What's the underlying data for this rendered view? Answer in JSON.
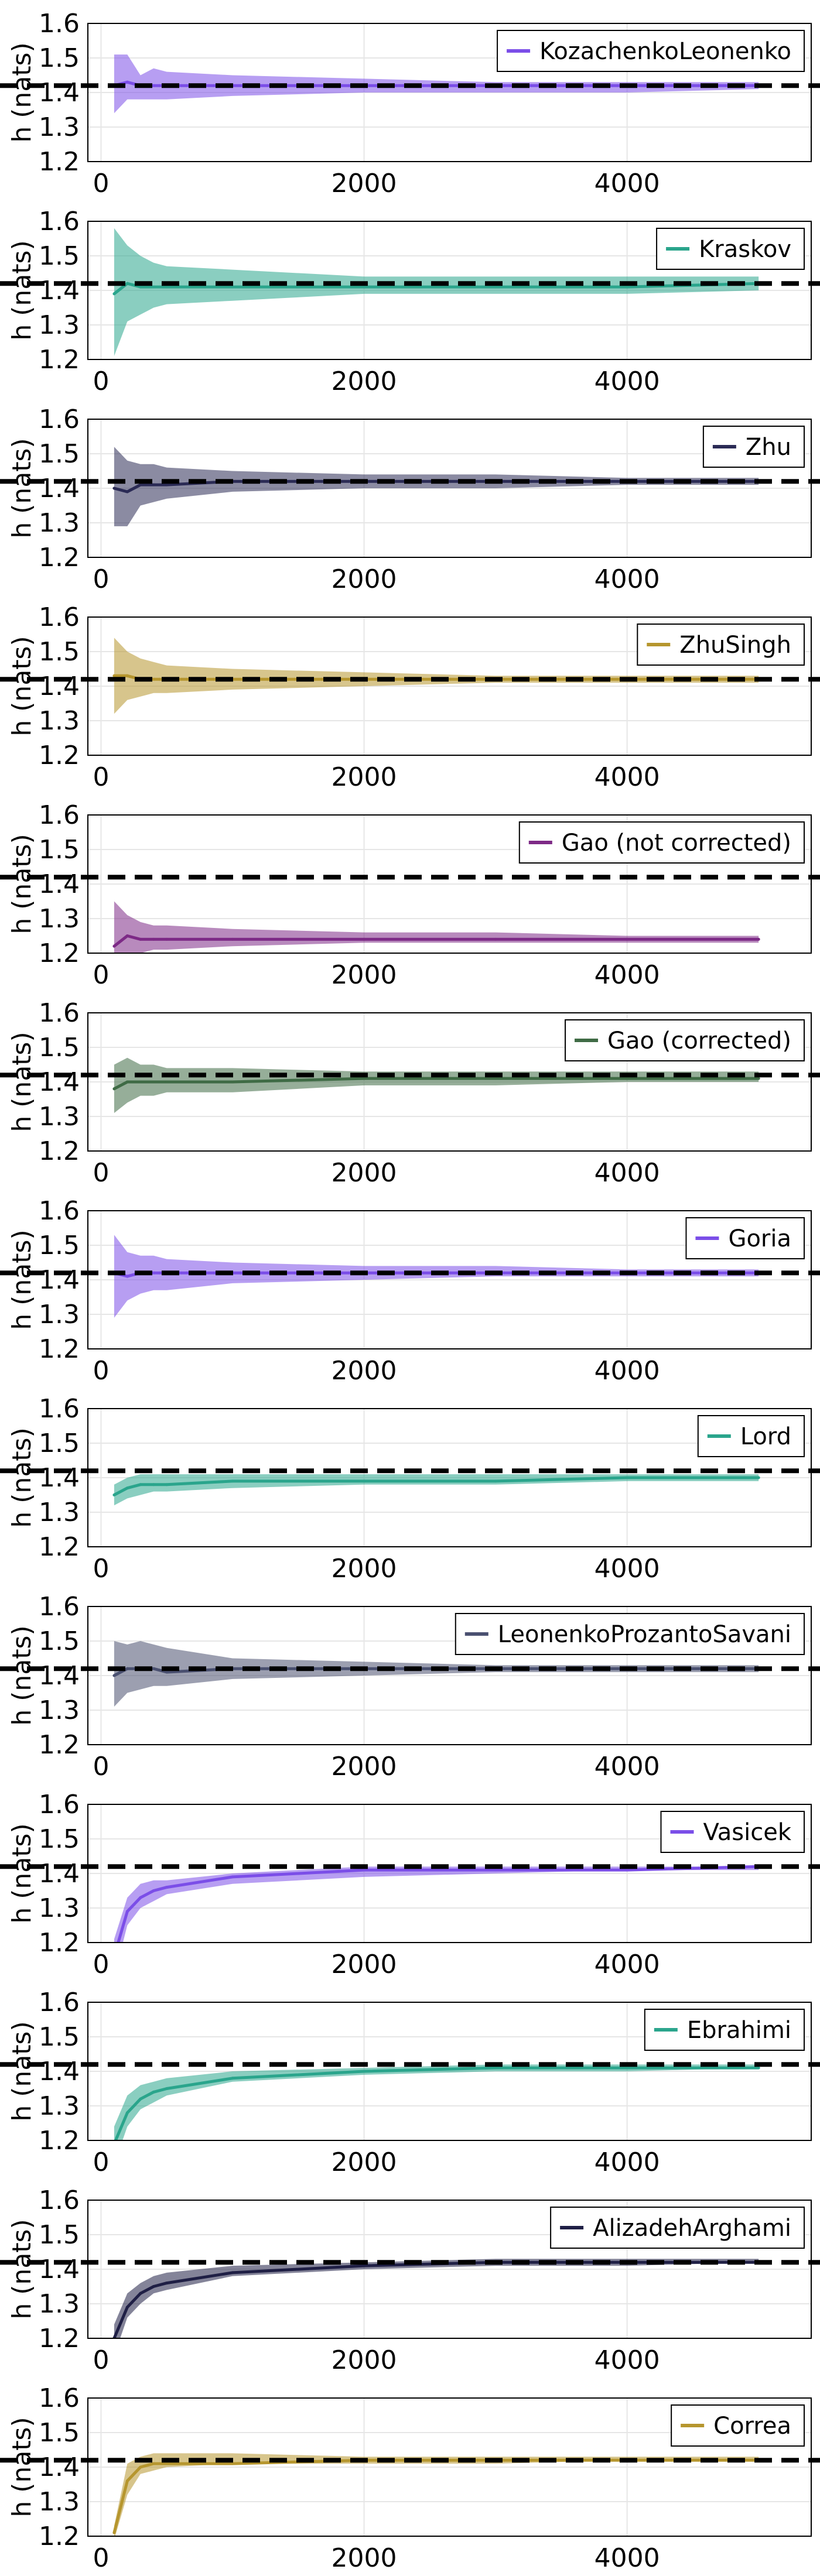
{
  "chart_data": [
    {
      "type": "line",
      "series": [
        {
          "name": "KozachenkoLeonenko",
          "color": "#7b4ee8",
          "x": [
            100,
            200,
            300,
            400,
            500,
            1000,
            2000,
            3000,
            4000,
            5000
          ],
          "values": [
            1.42,
            1.43,
            1.42,
            1.42,
            1.42,
            1.42,
            1.42,
            1.42,
            1.42,
            1.42
          ],
          "lower": [
            1.34,
            1.38,
            1.38,
            1.38,
            1.38,
            1.39,
            1.4,
            1.4,
            1.4,
            1.41
          ],
          "upper": [
            1.51,
            1.51,
            1.45,
            1.47,
            1.46,
            1.45,
            1.44,
            1.43,
            1.43,
            1.43
          ]
        }
      ],
      "reference_value": 1.42,
      "ylabel": "h (nats)",
      "xlim": [
        -100,
        5400
      ],
      "ylim": [
        1.2,
        1.6
      ],
      "x_ticks": [
        0,
        2000,
        4000
      ],
      "y_ticks": [
        "1.2",
        "1.3",
        "1.4",
        "1.5",
        "1.6"
      ],
      "grid": true,
      "legend": "top-right"
    },
    {
      "type": "line",
      "series": [
        {
          "name": "Kraskov",
          "color": "#2aa58c",
          "x": [
            100,
            200,
            300,
            400,
            500,
            1000,
            2000,
            3000,
            4000,
            5000
          ],
          "values": [
            1.39,
            1.42,
            1.41,
            1.41,
            1.41,
            1.41,
            1.41,
            1.41,
            1.41,
            1.42
          ],
          "lower": [
            1.21,
            1.31,
            1.33,
            1.35,
            1.36,
            1.37,
            1.39,
            1.39,
            1.39,
            1.4
          ],
          "upper": [
            1.58,
            1.53,
            1.5,
            1.48,
            1.47,
            1.46,
            1.44,
            1.44,
            1.44,
            1.44
          ]
        }
      ],
      "reference_value": 1.42,
      "ylabel": "h (nats)",
      "xlim": [
        -100,
        5400
      ],
      "ylim": [
        1.2,
        1.6
      ],
      "x_ticks": [
        0,
        2000,
        4000
      ],
      "y_ticks": [
        "1.2",
        "1.3",
        "1.4",
        "1.5",
        "1.6"
      ],
      "grid": true,
      "legend": "top-right"
    },
    {
      "type": "line",
      "series": [
        {
          "name": "Zhu",
          "color": "#2b2b55",
          "x": [
            100,
            200,
            300,
            400,
            500,
            1000,
            2000,
            3000,
            4000,
            5000
          ],
          "values": [
            1.4,
            1.39,
            1.41,
            1.41,
            1.41,
            1.42,
            1.42,
            1.42,
            1.42,
            1.42
          ],
          "lower": [
            1.29,
            1.29,
            1.35,
            1.36,
            1.37,
            1.39,
            1.4,
            1.4,
            1.41,
            1.41
          ],
          "upper": [
            1.52,
            1.48,
            1.47,
            1.47,
            1.46,
            1.45,
            1.44,
            1.44,
            1.43,
            1.43
          ]
        }
      ],
      "reference_value": 1.42,
      "ylabel": "h (nats)",
      "xlim": [
        -100,
        5400
      ],
      "ylim": [
        1.2,
        1.6
      ],
      "x_ticks": [
        0,
        2000,
        4000
      ],
      "y_ticks": [
        "1.2",
        "1.3",
        "1.4",
        "1.5",
        "1.6"
      ],
      "grid": true,
      "legend": "top-right"
    },
    {
      "type": "line",
      "series": [
        {
          "name": "ZhuSingh",
          "color": "#b6962e",
          "x": [
            100,
            200,
            300,
            400,
            500,
            1000,
            2000,
            3000,
            4000,
            5000
          ],
          "values": [
            1.43,
            1.43,
            1.42,
            1.42,
            1.42,
            1.42,
            1.42,
            1.42,
            1.42,
            1.42
          ],
          "lower": [
            1.32,
            1.36,
            1.37,
            1.38,
            1.38,
            1.39,
            1.4,
            1.41,
            1.41,
            1.41
          ],
          "upper": [
            1.54,
            1.5,
            1.48,
            1.47,
            1.46,
            1.45,
            1.44,
            1.43,
            1.43,
            1.43
          ]
        }
      ],
      "reference_value": 1.42,
      "ylabel": "h (nats)",
      "xlim": [
        -100,
        5400
      ],
      "ylim": [
        1.2,
        1.6
      ],
      "x_ticks": [
        0,
        2000,
        4000
      ],
      "y_ticks": [
        "1.2",
        "1.3",
        "1.4",
        "1.5",
        "1.6"
      ],
      "grid": true,
      "legend": "top-right"
    },
    {
      "type": "line",
      "series": [
        {
          "name": "Gao (not corrected)",
          "color": "#7d2a86",
          "x": [
            100,
            200,
            300,
            400,
            500,
            1000,
            2000,
            3000,
            4000,
            5000
          ],
          "values": [
            1.22,
            1.25,
            1.24,
            1.24,
            1.24,
            1.24,
            1.24,
            1.24,
            1.24,
            1.24
          ],
          "lower": [
            1.2,
            1.2,
            1.2,
            1.21,
            1.21,
            1.22,
            1.23,
            1.23,
            1.23,
            1.23
          ],
          "upper": [
            1.35,
            1.31,
            1.29,
            1.28,
            1.28,
            1.27,
            1.26,
            1.26,
            1.25,
            1.25
          ]
        }
      ],
      "reference_value": 1.42,
      "ylabel": "h (nats)",
      "xlim": [
        -100,
        5400
      ],
      "ylim": [
        1.2,
        1.6
      ],
      "x_ticks": [
        0,
        2000,
        4000
      ],
      "y_ticks": [
        "1.2",
        "1.3",
        "1.4",
        "1.5",
        "1.6"
      ],
      "grid": true,
      "legend": "top-right"
    },
    {
      "type": "line",
      "series": [
        {
          "name": "Gao (corrected)",
          "color": "#3f6b45",
          "x": [
            100,
            200,
            300,
            400,
            500,
            1000,
            2000,
            3000,
            4000,
            5000
          ],
          "values": [
            1.38,
            1.4,
            1.4,
            1.4,
            1.4,
            1.4,
            1.41,
            1.41,
            1.41,
            1.41
          ],
          "lower": [
            1.31,
            1.34,
            1.36,
            1.36,
            1.37,
            1.37,
            1.39,
            1.39,
            1.4,
            1.4
          ],
          "upper": [
            1.45,
            1.47,
            1.45,
            1.45,
            1.44,
            1.44,
            1.43,
            1.43,
            1.43,
            1.43
          ]
        }
      ],
      "reference_value": 1.42,
      "ylabel": "h (nats)",
      "xlim": [
        -100,
        5400
      ],
      "ylim": [
        1.2,
        1.6
      ],
      "x_ticks": [
        0,
        2000,
        4000
      ],
      "y_ticks": [
        "1.2",
        "1.3",
        "1.4",
        "1.5",
        "1.6"
      ],
      "grid": true,
      "legend": "top-right"
    },
    {
      "type": "line",
      "series": [
        {
          "name": "Goria",
          "color": "#7b4ee8",
          "x": [
            100,
            200,
            300,
            400,
            500,
            1000,
            2000,
            3000,
            4000,
            5000
          ],
          "values": [
            1.42,
            1.41,
            1.42,
            1.42,
            1.42,
            1.42,
            1.42,
            1.42,
            1.42,
            1.42
          ],
          "lower": [
            1.29,
            1.34,
            1.36,
            1.37,
            1.37,
            1.39,
            1.4,
            1.41,
            1.41,
            1.41
          ],
          "upper": [
            1.53,
            1.48,
            1.47,
            1.47,
            1.46,
            1.45,
            1.44,
            1.44,
            1.43,
            1.43
          ]
        }
      ],
      "reference_value": 1.42,
      "ylabel": "h (nats)",
      "xlim": [
        -100,
        5400
      ],
      "ylim": [
        1.2,
        1.6
      ],
      "x_ticks": [
        0,
        2000,
        4000
      ],
      "y_ticks": [
        "1.2",
        "1.3",
        "1.4",
        "1.5",
        "1.6"
      ],
      "grid": true,
      "legend": "top-right"
    },
    {
      "type": "line",
      "series": [
        {
          "name": "Lord",
          "color": "#2aa58c",
          "x": [
            100,
            200,
            300,
            400,
            500,
            1000,
            2000,
            3000,
            4000,
            5000
          ],
          "values": [
            1.35,
            1.37,
            1.38,
            1.38,
            1.38,
            1.39,
            1.39,
            1.39,
            1.4,
            1.4
          ],
          "lower": [
            1.32,
            1.34,
            1.35,
            1.36,
            1.36,
            1.37,
            1.38,
            1.38,
            1.39,
            1.39
          ],
          "upper": [
            1.38,
            1.4,
            1.41,
            1.41,
            1.41,
            1.41,
            1.41,
            1.41,
            1.41,
            1.41
          ]
        }
      ],
      "reference_value": 1.42,
      "ylabel": "h (nats)",
      "xlim": [
        -100,
        5400
      ],
      "ylim": [
        1.2,
        1.6
      ],
      "x_ticks": [
        0,
        2000,
        4000
      ],
      "y_ticks": [
        "1.2",
        "1.3",
        "1.4",
        "1.5",
        "1.6"
      ],
      "grid": true,
      "legend": "top-right"
    },
    {
      "type": "line",
      "series": [
        {
          "name": "LeonenkoProzantoSavani",
          "color": "#4a5070",
          "x": [
            100,
            200,
            300,
            400,
            500,
            1000,
            2000,
            3000,
            4000,
            5000
          ],
          "values": [
            1.4,
            1.42,
            1.42,
            1.42,
            1.41,
            1.42,
            1.42,
            1.42,
            1.42,
            1.42
          ],
          "lower": [
            1.31,
            1.35,
            1.36,
            1.37,
            1.37,
            1.39,
            1.4,
            1.41,
            1.41,
            1.41
          ],
          "upper": [
            1.5,
            1.49,
            1.5,
            1.49,
            1.48,
            1.45,
            1.44,
            1.43,
            1.43,
            1.43
          ]
        }
      ],
      "reference_value": 1.42,
      "ylabel": "h (nats)",
      "xlim": [
        -100,
        5400
      ],
      "ylim": [
        1.2,
        1.6
      ],
      "x_ticks": [
        0,
        2000,
        4000
      ],
      "y_ticks": [
        "1.2",
        "1.3",
        "1.4",
        "1.5",
        "1.6"
      ],
      "grid": true,
      "legend": "top-right"
    },
    {
      "type": "line",
      "series": [
        {
          "name": "Vasicek",
          "color": "#7b4ee8",
          "x": [
            100,
            200,
            300,
            400,
            500,
            1000,
            2000,
            3000,
            4000,
            5000
          ],
          "values": [
            1.16,
            1.29,
            1.33,
            1.35,
            1.36,
            1.39,
            1.41,
            1.41,
            1.41,
            1.42
          ],
          "lower": [
            1.1,
            1.25,
            1.3,
            1.32,
            1.34,
            1.37,
            1.39,
            1.4,
            1.41,
            1.41
          ],
          "upper": [
            1.21,
            1.33,
            1.37,
            1.38,
            1.38,
            1.4,
            1.42,
            1.42,
            1.42,
            1.42
          ]
        }
      ],
      "reference_value": 1.42,
      "ylabel": "h (nats)",
      "xlim": [
        -100,
        5400
      ],
      "ylim": [
        1.2,
        1.6
      ],
      "x_ticks": [
        0,
        2000,
        4000
      ],
      "y_ticks": [
        "1.2",
        "1.3",
        "1.4",
        "1.5",
        "1.6"
      ],
      "grid": true,
      "legend": "top-right"
    },
    {
      "type": "line",
      "series": [
        {
          "name": "Ebrahimi",
          "color": "#2aa58c",
          "x": [
            100,
            200,
            300,
            400,
            500,
            1000,
            2000,
            3000,
            4000,
            5000
          ],
          "values": [
            1.19,
            1.28,
            1.32,
            1.34,
            1.35,
            1.38,
            1.4,
            1.41,
            1.41,
            1.41
          ],
          "lower": [
            1.13,
            1.24,
            1.29,
            1.31,
            1.33,
            1.37,
            1.39,
            1.4,
            1.4,
            1.41
          ],
          "upper": [
            1.24,
            1.33,
            1.36,
            1.37,
            1.38,
            1.4,
            1.41,
            1.42,
            1.42,
            1.42
          ]
        }
      ],
      "reference_value": 1.42,
      "ylabel": "h (nats)",
      "xlim": [
        -100,
        5400
      ],
      "ylim": [
        1.2,
        1.6
      ],
      "x_ticks": [
        0,
        2000,
        4000
      ],
      "y_ticks": [
        "1.2",
        "1.3",
        "1.4",
        "1.5",
        "1.6"
      ],
      "grid": true,
      "legend": "top-right"
    },
    {
      "type": "line",
      "series": [
        {
          "name": "AlizadehArghami",
          "color": "#1f1f45",
          "x": [
            100,
            200,
            300,
            400,
            500,
            1000,
            2000,
            3000,
            4000,
            5000
          ],
          "values": [
            1.2,
            1.29,
            1.33,
            1.35,
            1.36,
            1.39,
            1.41,
            1.42,
            1.42,
            1.42
          ],
          "lower": [
            1.15,
            1.26,
            1.3,
            1.33,
            1.34,
            1.38,
            1.4,
            1.41,
            1.41,
            1.42
          ],
          "upper": [
            1.24,
            1.33,
            1.36,
            1.38,
            1.39,
            1.41,
            1.42,
            1.43,
            1.43,
            1.43
          ]
        }
      ],
      "reference_value": 1.42,
      "ylabel": "h (nats)",
      "xlim": [
        -100,
        5400
      ],
      "ylim": [
        1.2,
        1.6
      ],
      "x_ticks": [
        0,
        2000,
        4000
      ],
      "y_ticks": [
        "1.2",
        "1.3",
        "1.4",
        "1.5",
        "1.6"
      ],
      "grid": true,
      "legend": "top-right"
    },
    {
      "type": "line",
      "series": [
        {
          "name": "Correa",
          "color": "#b6962e",
          "x": [
            100,
            200,
            300,
            400,
            500,
            1000,
            2000,
            3000,
            4000,
            5000
          ],
          "values": [
            1.21,
            1.36,
            1.4,
            1.41,
            1.41,
            1.41,
            1.42,
            1.42,
            1.42,
            1.42
          ],
          "lower": [
            1.19,
            1.32,
            1.38,
            1.39,
            1.4,
            1.41,
            1.41,
            1.41,
            1.42,
            1.42
          ],
          "upper": [
            1.23,
            1.41,
            1.43,
            1.44,
            1.44,
            1.44,
            1.43,
            1.43,
            1.43,
            1.43
          ]
        }
      ],
      "reference_value": 1.42,
      "ylabel": "h (nats)",
      "xlim": [
        -100,
        5400
      ],
      "ylim": [
        1.2,
        1.6
      ],
      "x_ticks": [
        0,
        2000,
        4000
      ],
      "y_ticks": [
        "1.2",
        "1.3",
        "1.4",
        "1.5",
        "1.6"
      ],
      "grid": true,
      "legend": "top-right"
    }
  ]
}
